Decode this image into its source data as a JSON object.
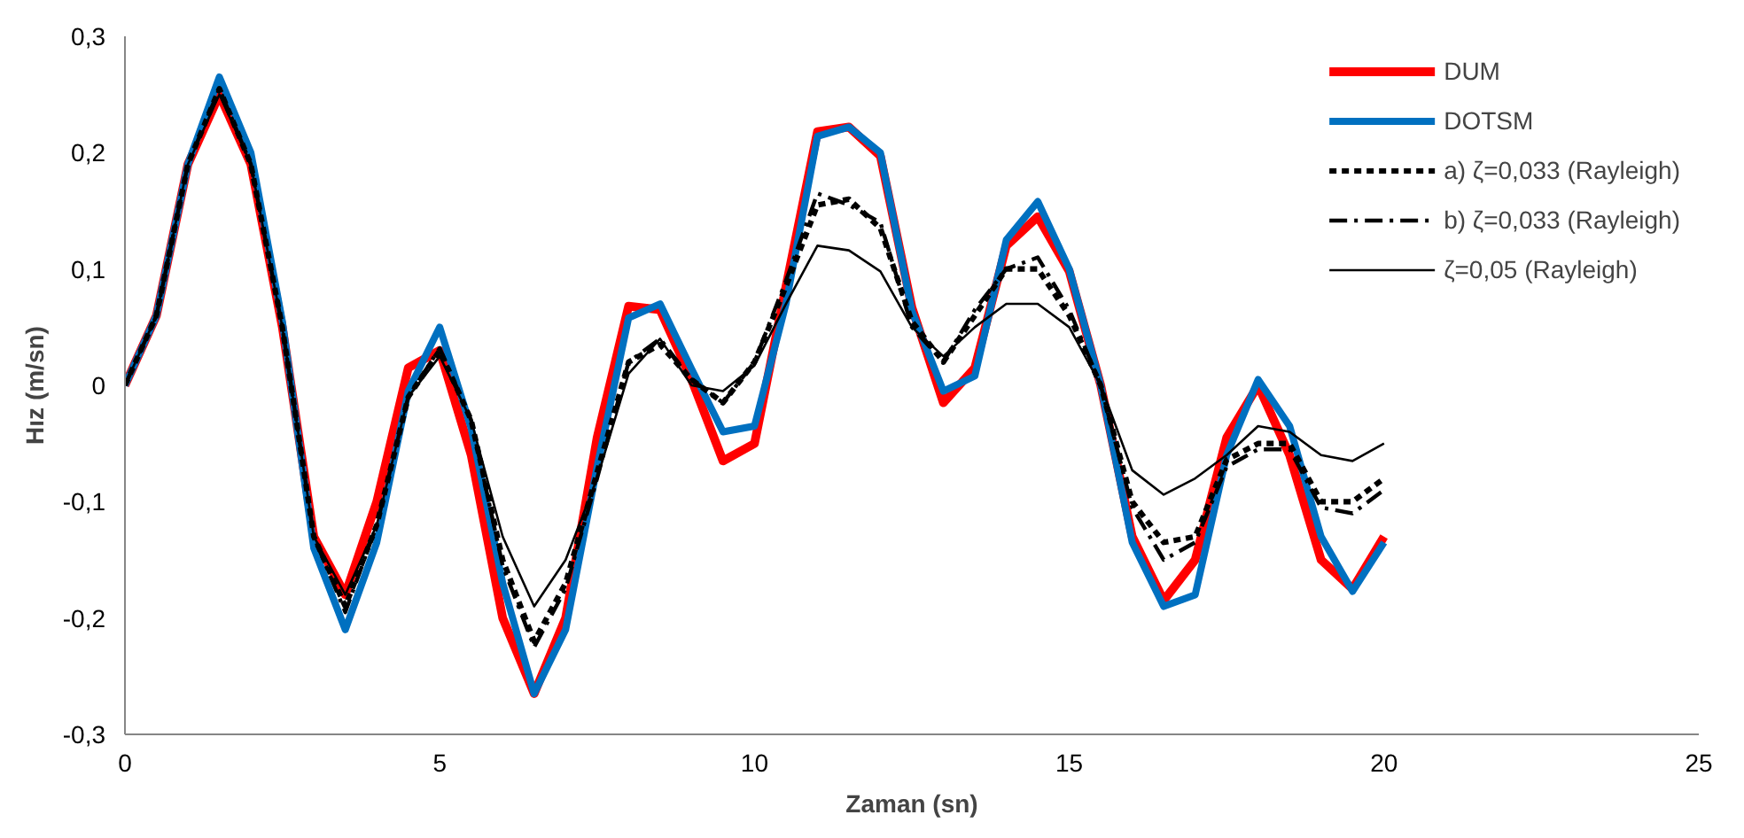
{
  "chart_data": {
    "type": "line",
    "xlabel": "Zaman (sn)",
    "ylabel": "Hız (m/sn)",
    "x": [
      0,
      0.5,
      1,
      1.5,
      2,
      2.5,
      3,
      3.5,
      4,
      4.5,
      5,
      5.5,
      6,
      6.5,
      7,
      7.5,
      8,
      8.5,
      9,
      9.5,
      10,
      10.5,
      11,
      11.5,
      12,
      12.5,
      13,
      13.5,
      14,
      14.5,
      15,
      15.5,
      16,
      16.5,
      17,
      17.5,
      18,
      18.5,
      19,
      19.5,
      20
    ],
    "series": [
      {
        "name": "DUM",
        "color": "#ff0000",
        "line_style": "solid",
        "values": [
          0,
          0.06,
          0.19,
          0.25,
          0.19,
          0.05,
          -0.13,
          -0.18,
          -0.1,
          0.015,
          0.03,
          -0.06,
          -0.2,
          -0.265,
          -0.2,
          -0.045,
          0.068,
          0.065,
          0.005,
          -0.065,
          -0.05,
          0.085,
          0.218,
          0.222,
          0.197,
          0.067,
          -0.015,
          0.015,
          0.12,
          0.145,
          0.098,
          0,
          -0.13,
          -0.185,
          -0.15,
          -0.045,
          0,
          -0.06,
          -0.15,
          -0.175,
          -0.13
        ]
      },
      {
        "name": "DOTSM",
        "color": "#0070c0",
        "line_style": "solid",
        "values": [
          0,
          0.06,
          0.19,
          0.265,
          0.2,
          0.055,
          -0.14,
          -0.21,
          -0.135,
          -0.005,
          0.05,
          -0.037,
          -0.17,
          -0.265,
          -0.21,
          -0.07,
          0.058,
          0.07,
          0.014,
          -0.04,
          -0.035,
          0.07,
          0.214,
          0.222,
          0.2,
          0.064,
          -0.005,
          0.008,
          0.125,
          0.158,
          0.1,
          0,
          -0.135,
          -0.19,
          -0.18,
          -0.06,
          0.005,
          -0.035,
          -0.13,
          -0.177,
          -0.135
        ]
      },
      {
        "name": "a) ζ=0,033 (Rayleigh)",
        "color": "#000000",
        "line_style": "dashed",
        "values": [
          0,
          0.06,
          0.19,
          0.255,
          0.19,
          0.05,
          -0.13,
          -0.19,
          -0.12,
          -0.01,
          0.03,
          -0.03,
          -0.15,
          -0.22,
          -0.17,
          -0.075,
          0.02,
          0.035,
          0.005,
          -0.015,
          0.02,
          0.085,
          0.155,
          0.16,
          0.135,
          0.055,
          0.02,
          0.06,
          0.1,
          0.1,
          0.06,
          0,
          -0.1,
          -0.135,
          -0.13,
          -0.064,
          -0.05,
          -0.05,
          -0.1,
          -0.1,
          -0.08
        ]
      },
      {
        "name": "b) ζ=0,033 (Rayleigh)",
        "color": "#000000",
        "line_style": "dashdot",
        "values": [
          0,
          0.06,
          0.19,
          0.255,
          0.19,
          0.05,
          -0.13,
          -0.195,
          -0.12,
          -0.01,
          0.032,
          -0.03,
          -0.155,
          -0.225,
          -0.175,
          -0.08,
          0.02,
          0.04,
          0.005,
          -0.015,
          0.02,
          0.09,
          0.165,
          0.155,
          0.14,
          0.05,
          0.02,
          0.065,
          0.1,
          0.11,
          0.065,
          0,
          -0.105,
          -0.15,
          -0.135,
          -0.07,
          -0.055,
          -0.055,
          -0.105,
          -0.11,
          -0.09
        ]
      },
      {
        "name": "ζ=0,05 (Rayleigh)",
        "color": "#000000",
        "line_style": "solid",
        "values": [
          0,
          0.06,
          0.19,
          0.25,
          0.19,
          0.05,
          -0.13,
          -0.18,
          -0.12,
          -0.01,
          0.025,
          -0.03,
          -0.13,
          -0.19,
          -0.15,
          -0.08,
          0.01,
          0.04,
          0,
          -0.005,
          0.017,
          0.07,
          0.12,
          0.116,
          0.098,
          0.05,
          0.025,
          0.05,
          0.07,
          0.07,
          0.05,
          0,
          -0.073,
          -0.094,
          -0.08,
          -0.06,
          -0.035,
          -0.04,
          -0.06,
          -0.065,
          -0.05
        ]
      }
    ],
    "xlim": [
      0,
      25
    ],
    "xticks": [
      0,
      5,
      10,
      15,
      20,
      25
    ],
    "ylim": [
      -0.3,
      0.3
    ],
    "yticks": [
      {
        "value": -0.3,
        "label": "-0,3"
      },
      {
        "value": -0.2,
        "label": "-0,2"
      },
      {
        "value": -0.1,
        "label": "-0,1"
      },
      {
        "value": 0,
        "label": "0"
      },
      {
        "value": 0.1,
        "label": "0,1"
      },
      {
        "value": 0.2,
        "label": "0,2"
      },
      {
        "value": 0.3,
        "label": "0,3"
      }
    ],
    "grid": false,
    "legend": "top right"
  }
}
